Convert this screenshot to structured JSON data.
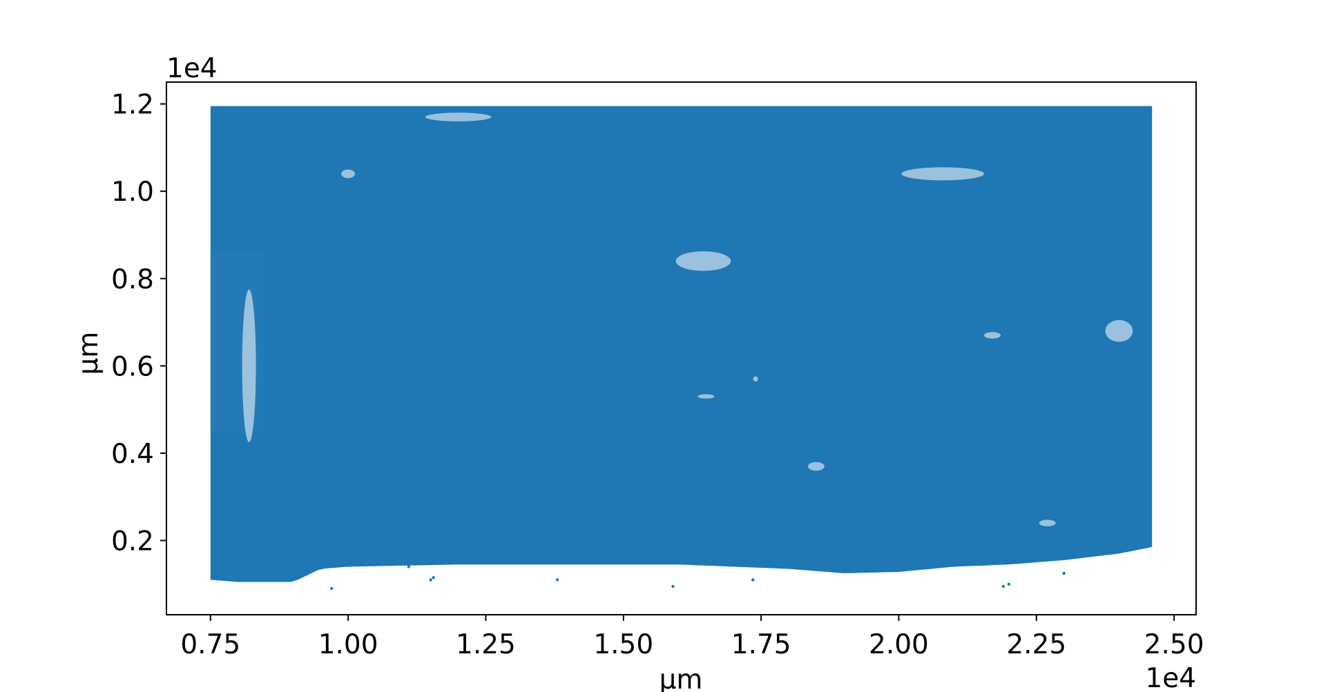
{
  "chart_data": {
    "type": "scatter",
    "title": "",
    "xlabel": "µm",
    "ylabel": "µm",
    "x_offset_text": "1e4",
    "y_offset_text": "1e4",
    "x_scale_factor": 10000,
    "y_scale_factor": 10000,
    "xlim": [
      6700,
      25400
    ],
    "ylim": [
      300,
      12500
    ],
    "xticks": [
      7500,
      10000,
      12500,
      15000,
      17500,
      20000,
      22500,
      25000
    ],
    "xtick_labels": [
      "0.75",
      "1.00",
      "1.25",
      "1.50",
      "1.75",
      "2.00",
      "2.25",
      "2.50"
    ],
    "yticks": [
      2000,
      4000,
      6000,
      8000,
      10000,
      12000
    ],
    "ytick_labels": [
      "0.2",
      "0.4",
      "0.6",
      "0.8",
      "1.0",
      "1.2"
    ],
    "grid": false,
    "legend": "none",
    "marker_color": "#1f77b4",
    "point_cloud": {
      "description": "dense point cloud",
      "x_range": [
        7500,
        24600
      ],
      "y_range": [
        1000,
        11950
      ],
      "top_left_step": {
        "x_end": 8500,
        "y": 8600
      },
      "lower_boundary": [
        [
          7500,
          1100
        ],
        [
          8000,
          1050
        ],
        [
          8500,
          1050
        ],
        [
          9000,
          1050
        ],
        [
          9500,
          1350
        ],
        [
          10000,
          1400
        ],
        [
          12000,
          1450
        ],
        [
          14000,
          1450
        ],
        [
          16000,
          1450
        ],
        [
          18000,
          1350
        ],
        [
          19000,
          1250
        ],
        [
          20000,
          1280
        ],
        [
          21000,
          1400
        ],
        [
          22000,
          1450
        ],
        [
          23000,
          1550
        ],
        [
          24000,
          1700
        ],
        [
          24600,
          1850
        ]
      ],
      "outlier_points": [
        [
          9700,
          900
        ],
        [
          11500,
          1100
        ],
        [
          11550,
          1150
        ],
        [
          11100,
          1400
        ],
        [
          13800,
          1100
        ],
        [
          15900,
          950
        ],
        [
          17350,
          1100
        ],
        [
          21900,
          950
        ],
        [
          22000,
          1000
        ],
        [
          23000,
          1250
        ]
      ],
      "gaps": [
        [
          17400,
          5700,
          90,
          120
        ],
        [
          16450,
          8400,
          1000,
          450
        ],
        [
          21700,
          6700,
          300,
          150
        ],
        [
          24000,
          6800,
          500,
          500
        ],
        [
          8200,
          6000,
          250,
          3500
        ],
        [
          12000,
          11700,
          1200,
          200
        ],
        [
          20800,
          10400,
          1500,
          300
        ],
        [
          10000,
          10400,
          250,
          200
        ],
        [
          16500,
          5300,
          300,
          100
        ],
        [
          18500,
          3700,
          300,
          200
        ],
        [
          22700,
          2400,
          300,
          150
        ]
      ]
    }
  }
}
